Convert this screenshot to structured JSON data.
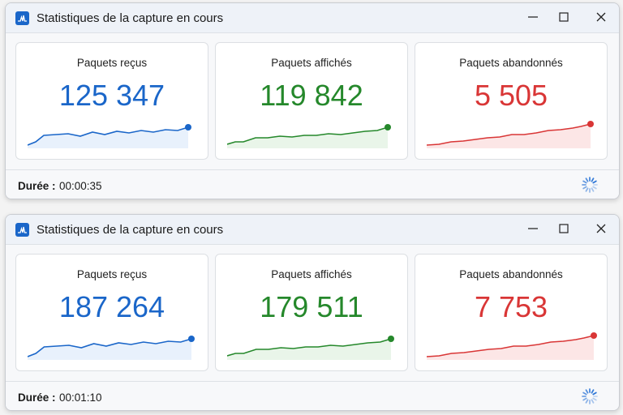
{
  "windows": [
    {
      "title": "Statistiques de la capture en cours",
      "cards": [
        {
          "label": "Paquets reçus",
          "value": "125 347"
        },
        {
          "label": "Paquets affichés",
          "value": "119 842"
        },
        {
          "label": "Paquets abandonnés",
          "value": "5 505"
        }
      ],
      "footer": {
        "label": "Durée :",
        "time": "00:00:35"
      }
    },
    {
      "title": "Statistiques de la capture en cours",
      "cards": [
        {
          "label": "Paquets reçus",
          "value": "187 264"
        },
        {
          "label": "Paquets affichés",
          "value": "179 511"
        },
        {
          "label": "Paquets abandonnés",
          "value": "7 753"
        }
      ],
      "footer": {
        "label": "Durée :",
        "time": "00:01:10"
      }
    }
  ]
}
